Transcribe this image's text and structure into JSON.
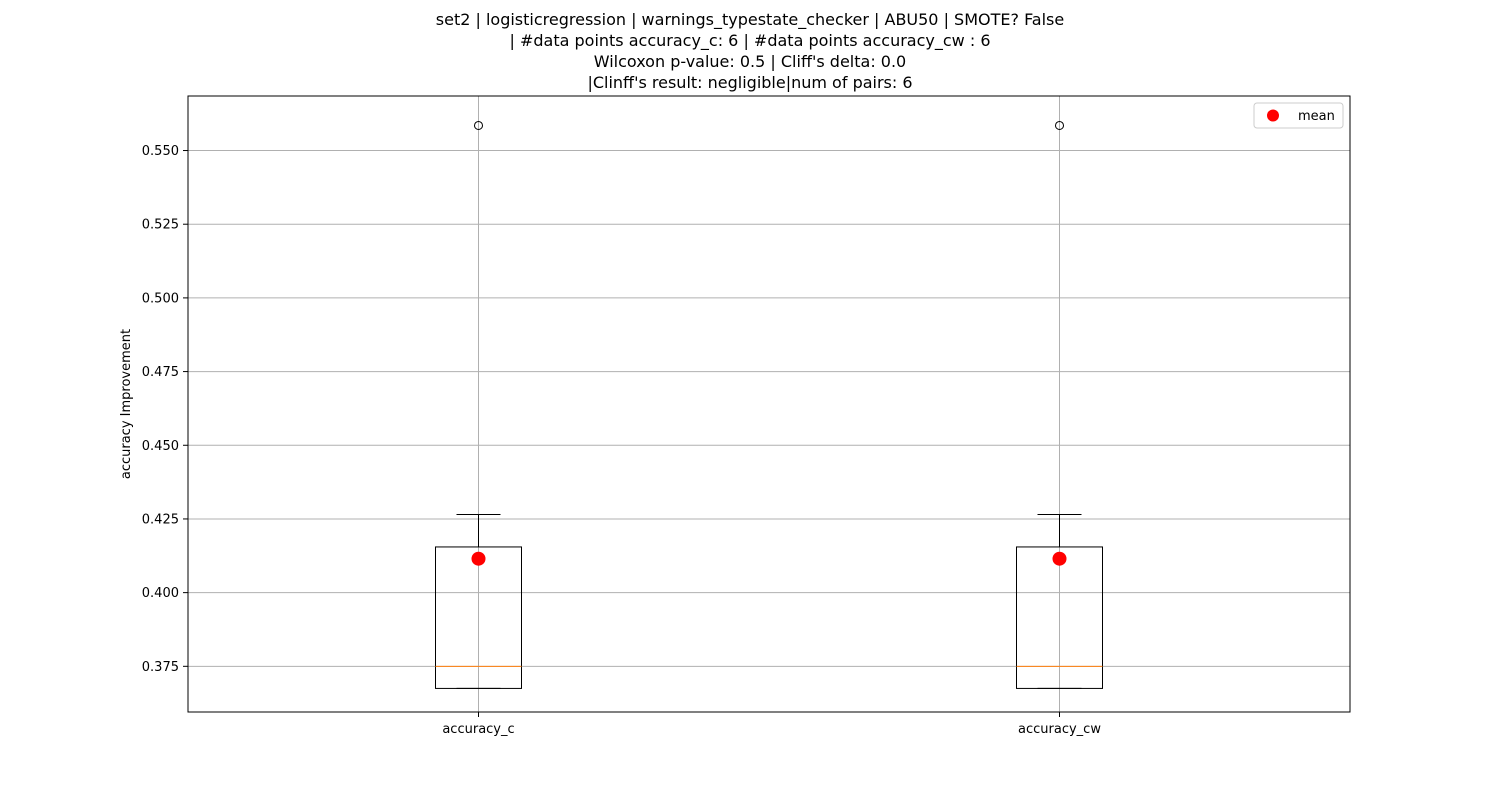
{
  "chart_data": {
    "type": "box",
    "title_lines": [
      "set2 | logisticregression | warnings_typestate_checker | ABU50 | SMOTE? False",
      "| #data points accuracy_c: 6 | #data points accuracy_cw : 6",
      "Wilcoxon p-value: 0.5 | Cliff's delta: 0.0",
      "|Clinff's result: negligible|num of pairs: 6"
    ],
    "xlabel": "",
    "ylabel": "accuracy Improvement",
    "ylim": [
      0.3595,
      0.5685
    ],
    "yticks": [
      0.375,
      0.4,
      0.425,
      0.45,
      0.475,
      0.5,
      0.525,
      0.55
    ],
    "ytick_labels": [
      "0.375",
      "0.400",
      "0.425",
      "0.450",
      "0.475",
      "0.500",
      "0.525",
      "0.550"
    ],
    "grid": true,
    "categories": [
      "accuracy_c",
      "accuracy_cw"
    ],
    "series": [
      {
        "whisker_low": 0.3675,
        "q1": 0.3675,
        "median": 0.375,
        "q3": 0.4155,
        "whisker_high": 0.4265,
        "outliers": [
          0.5585
        ],
        "mean": 0.4115
      },
      {
        "whisker_low": 0.3675,
        "q1": 0.3675,
        "median": 0.375,
        "q3": 0.4155,
        "whisker_high": 0.4265,
        "outliers": [
          0.5585
        ],
        "mean": 0.4115
      }
    ],
    "legend": {
      "label": "mean",
      "position": "top-right"
    },
    "colors": {
      "median": "#ff7f0e",
      "mean": "#ff0000",
      "box": "#000000",
      "grid": "#b0b0b0"
    }
  }
}
